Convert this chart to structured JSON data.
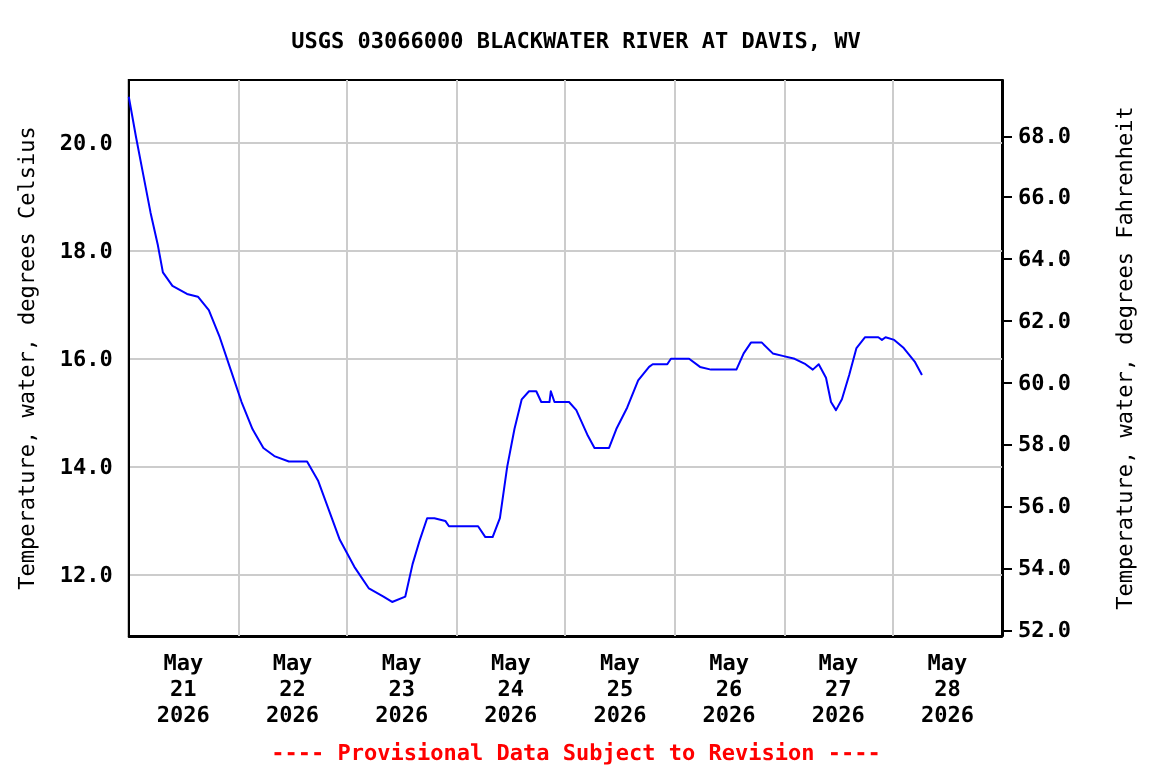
{
  "chart_data": {
    "type": "line",
    "title": "USGS 03066000 BLACKWATER RIVER AT DAVIS, WV",
    "ylabel": "Temperature, water, degrees Celsius",
    "y2label": "Temperature, water, degrees Fahrenheit",
    "annotations": [
      "---- Provisional Data Subject to Revision ----"
    ],
    "xlim": [
      "2026-05-20T12:00",
      "2026-05-28T12:00"
    ],
    "xticks": [
      {
        "value": "2026-05-21",
        "label": "May\n21\n2026"
      },
      {
        "value": "2026-05-21T12:00",
        "label": null
      },
      {
        "value": "2026-05-22",
        "label": "May\n22\n2026"
      },
      {
        "value": "2026-05-22T12:00",
        "label": null
      },
      {
        "value": "2026-05-23",
        "label": "May\n23\n2026"
      },
      {
        "value": "2026-05-23T12:00",
        "label": null
      },
      {
        "value": "2026-05-24",
        "label": "May\n24\n2026"
      },
      {
        "value": "2026-05-24T12:00",
        "label": null
      },
      {
        "value": "2026-05-25",
        "label": "May\n25\n2026"
      },
      {
        "value": "2026-05-25T12:00",
        "label": null
      },
      {
        "value": "2026-05-26",
        "label": "May\n26\n2026"
      },
      {
        "value": "2026-05-26T12:00",
        "label": null
      },
      {
        "value": "2026-05-27",
        "label": "May\n27\n2026"
      },
      {
        "value": "2026-05-27T12:00",
        "label": null
      },
      {
        "value": "2026-05-28",
        "label": "May\n28\n2026"
      }
    ],
    "ylim": [
      10.87,
      21.16
    ],
    "yticks": [
      {
        "value": 12,
        "label": "12.0"
      },
      {
        "value": 14,
        "label": "14.0"
      },
      {
        "value": 16,
        "label": "16.0"
      },
      {
        "value": 18,
        "label": "18.0"
      },
      {
        "value": 20,
        "label": "20.0"
      }
    ],
    "y2lim": [
      51.8,
      69.8
    ],
    "y2ticks": [
      {
        "value": 52,
        "label": "52.0"
      },
      {
        "value": 54,
        "label": "54.0"
      },
      {
        "value": 56,
        "label": "56.0"
      },
      {
        "value": 58,
        "label": "58.0"
      },
      {
        "value": 60,
        "label": "60.0"
      },
      {
        "value": 62,
        "label": "62.0"
      },
      {
        "value": 64,
        "label": "64.0"
      },
      {
        "value": 66,
        "label": "66.0"
      },
      {
        "value": 68,
        "label": "68.0"
      }
    ],
    "grid": true,
    "marker": "none",
    "line_style": "solid",
    "series": [
      {
        "color": "#0000ff",
        "x": [
          "2026-05-20T12:00",
          "2026-05-20T13:36",
          "2026-05-20T15:12",
          "2026-05-20T16:48",
          "2026-05-20T18:24",
          "2026-05-20T19:30",
          "2026-05-20T21:36",
          "2026-05-21T00:48",
          "2026-05-21T03:12",
          "2026-05-21T05:36",
          "2026-05-21T08:00",
          "2026-05-21T10:24",
          "2026-05-21T12:48",
          "2026-05-21T15:12",
          "2026-05-21T17:36",
          "2026-05-21T20:00",
          "2026-05-21T23:12",
          "2026-05-22T03:12",
          "2026-05-22T05:36",
          "2026-05-22T08:00",
          "2026-05-22T10:24",
          "2026-05-22T13:36",
          "2026-05-22T16:48",
          "2026-05-22T20:00",
          "2026-05-22T21:54",
          "2026-05-23T00:48",
          "2026-05-23T02:24",
          "2026-05-23T04:00",
          "2026-05-23T05:36",
          "2026-05-23T07:12",
          "2026-05-23T09:36",
          "2026-05-23T10:24",
          "2026-05-23T16:48",
          "2026-05-23T18:24",
          "2026-05-23T20:00",
          "2026-05-23T21:36",
          "2026-05-23T23:12",
          "2026-05-24T00:48",
          "2026-05-24T02:24",
          "2026-05-24T04:00",
          "2026-05-24T05:36",
          "2026-05-24T06:42",
          "2026-05-24T08:30",
          "2026-05-24T08:48",
          "2026-05-24T09:36",
          "2026-05-24T12:48",
          "2026-05-24T14:24",
          "2026-05-24T16:48",
          "2026-05-24T18:24",
          "2026-05-24T21:36",
          "2026-05-24T23:12",
          "2026-05-25T01:36",
          "2026-05-25T04:00",
          "2026-05-25T06:24",
          "2026-05-25T07:12",
          "2026-05-25T10:24",
          "2026-05-25T11:12",
          "2026-05-25T15:12",
          "2026-05-25T17:36",
          "2026-05-25T20:00",
          "2026-05-26T01:36",
          "2026-05-26T03:12",
          "2026-05-26T04:48",
          "2026-05-26T07:12",
          "2026-05-26T09:36",
          "2026-05-26T12:00",
          "2026-05-26T14:24",
          "2026-05-26T16:48",
          "2026-05-26T18:24",
          "2026-05-26T19:42",
          "2026-05-26T21:18",
          "2026-05-26T22:24",
          "2026-05-26T23:30",
          "2026-05-27T00:48",
          "2026-05-27T02:24",
          "2026-05-27T04:00",
          "2026-05-27T05:54",
          "2026-05-27T08:48",
          "2026-05-27T09:36",
          "2026-05-27T10:24",
          "2026-05-27T12:18",
          "2026-05-27T14:24",
          "2026-05-27T16:48",
          "2026-05-27T18:24"
        ],
        "values": [
          20.85,
          20.1,
          19.4,
          18.7,
          18.1,
          17.6,
          17.35,
          17.2,
          17.15,
          16.9,
          16.4,
          15.8,
          15.2,
          14.7,
          14.35,
          14.2,
          14.1,
          14.1,
          13.75,
          13.2,
          12.65,
          12.15,
          11.75,
          11.6,
          11.5,
          11.6,
          12.2,
          12.65,
          13.05,
          13.05,
          13.0,
          12.9,
          12.9,
          12.7,
          12.7,
          13.05,
          14.0,
          14.7,
          15.25,
          15.4,
          15.4,
          15.2,
          15.2,
          15.4,
          15.2,
          15.2,
          15.05,
          14.6,
          14.35,
          14.35,
          14.7,
          15.1,
          15.6,
          15.85,
          15.9,
          15.9,
          16.0,
          16.0,
          15.85,
          15.8,
          15.8,
          16.1,
          16.3,
          16.3,
          16.1,
          16.05,
          16.0,
          15.9,
          15.8,
          15.9,
          15.65,
          15.2,
          15.05,
          15.25,
          15.7,
          16.2,
          16.4,
          16.4,
          16.35,
          16.4,
          16.35,
          16.2,
          15.95,
          15.7
        ]
      }
    ]
  }
}
